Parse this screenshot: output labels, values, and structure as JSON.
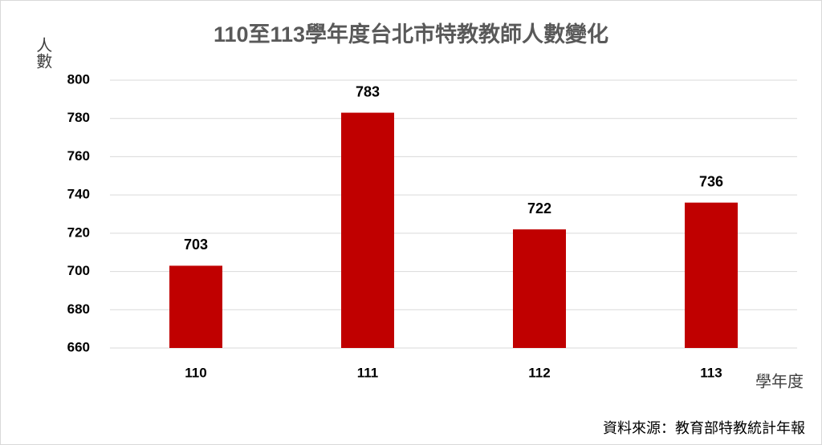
{
  "chart_data": {
    "type": "bar",
    "title": "110至113學年度台北市特教教師人數變化",
    "y_label": "人數",
    "x_label": "學年度",
    "source": "資料來源：教育部特教統計年報",
    "categories": [
      "110",
      "111",
      "112",
      "113"
    ],
    "values": [
      703,
      783,
      722,
      736
    ],
    "color": "#c00000",
    "ylim": [
      660,
      800
    ],
    "yticks": [
      660,
      680,
      700,
      720,
      740,
      760,
      780,
      800
    ],
    "grid": true
  }
}
